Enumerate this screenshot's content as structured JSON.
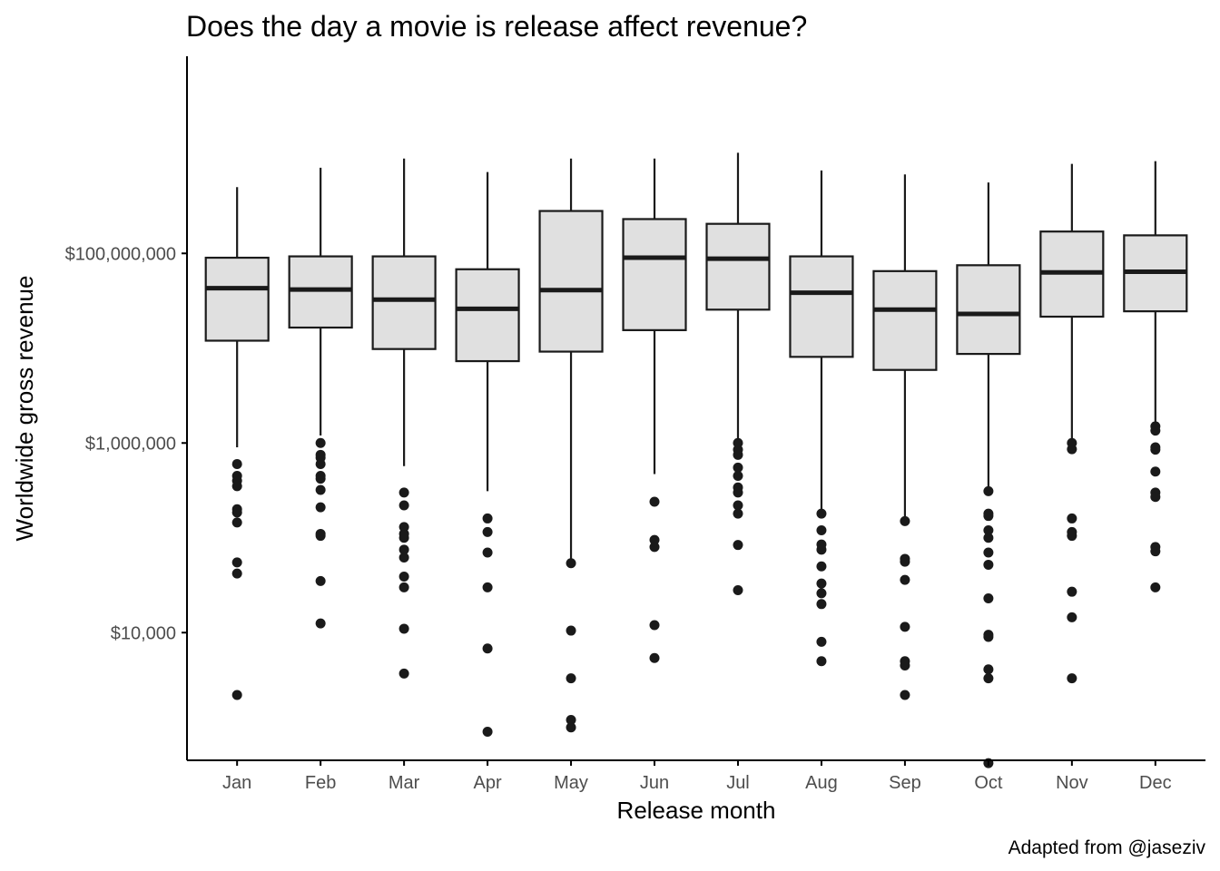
{
  "chart_data": {
    "type": "boxplot",
    "title": "Does the day a movie is release affect revenue?",
    "xlabel": "Release month",
    "ylabel": "Worldwide gross revenue",
    "caption": "Adapted from @jaseziv",
    "y_scale": "log10",
    "ylim": [
      450,
      12000000000
    ],
    "y_ticks": [
      {
        "value": 10000,
        "label": "$10,000"
      },
      {
        "value": 1000000,
        "label": "$1,000,000"
      },
      {
        "value": 100000000,
        "label": "$100,000,000"
      }
    ],
    "grid": false,
    "legend": "none",
    "categories": [
      "Jan",
      "Feb",
      "Mar",
      "Apr",
      "May",
      "Jun",
      "Jul",
      "Aug",
      "Sep",
      "Oct",
      "Nov",
      "Dec"
    ],
    "boxes": [
      {
        "month": "Jan",
        "min": 900000,
        "q1": 12000000,
        "median": 43000000,
        "q3": 90000000,
        "max": 500000000,
        "outliers": [
          600000,
          450000,
          400000,
          350000,
          200000,
          185000,
          145000,
          55000,
          42000,
          2200
        ]
      },
      {
        "month": "Feb",
        "min": 1200000,
        "q1": 16500000,
        "median": 41500000,
        "q3": 93000000,
        "max": 800000000,
        "outliers": [
          1000000,
          750000,
          700000,
          600000,
          450000,
          420000,
          320000,
          210000,
          110000,
          105000,
          35000,
          12500
        ]
      },
      {
        "month": "Mar",
        "min": 570000,
        "q1": 9800000,
        "median": 32500000,
        "q3": 93000000,
        "max": 1000000000,
        "outliers": [
          300000,
          220000,
          130000,
          100000,
          110000,
          75000,
          62000,
          39000,
          30000,
          11000,
          3700
        ]
      },
      {
        "month": "Apr",
        "min": 310000,
        "q1": 7300000,
        "median": 26000000,
        "q3": 68000000,
        "max": 720000000,
        "outliers": [
          160000,
          115000,
          70000,
          30000,
          6800,
          900
        ]
      },
      {
        "month": "May",
        "min": 58000,
        "q1": 9200000,
        "median": 41000000,
        "q3": 280000000,
        "max": 1000000000,
        "outliers": [
          54000,
          10500,
          3300,
          1200,
          1000
        ]
      },
      {
        "month": "Jun",
        "min": 470000,
        "q1": 15500000,
        "median": 90000000,
        "q3": 230000000,
        "max": 1000000000,
        "outliers": [
          240000,
          95000,
          80000,
          12000,
          5400
        ]
      },
      {
        "month": "Jul",
        "min": 1000000,
        "q1": 25500000,
        "median": 88000000,
        "q3": 205000000,
        "max": 1150000000,
        "outliers": [
          1000000,
          850000,
          750000,
          550000,
          450000,
          340000,
          300000,
          220000,
          180000,
          84000,
          28000
        ]
      },
      {
        "month": "Aug",
        "min": 190000,
        "q1": 8100000,
        "median": 38500000,
        "q3": 93000000,
        "max": 750000000,
        "outliers": [
          180000,
          120000,
          85000,
          75000,
          50000,
          33000,
          26000,
          20000,
          8000,
          5000
        ]
      },
      {
        "month": "Sep",
        "min": 150000,
        "q1": 5900000,
        "median": 25500000,
        "q3": 65000000,
        "max": 680000000,
        "outliers": [
          150000,
          60000,
          56000,
          36000,
          11500,
          5000,
          4500,
          2200
        ]
      },
      {
        "month": "Oct",
        "min": 320000,
        "q1": 8700000,
        "median": 23000000,
        "q3": 75000000,
        "max": 560000000,
        "outliers": [
          310000,
          180000,
          170000,
          120000,
          100000,
          70000,
          52000,
          23000,
          9500,
          9000,
          4100,
          3300,
          420
        ]
      },
      {
        "month": "Nov",
        "min": 1050000,
        "q1": 21500000,
        "median": 63000000,
        "q3": 170000000,
        "max": 880000000,
        "outliers": [
          1000000,
          860000,
          160000,
          115000,
          105000,
          27000,
          14500,
          3300
        ]
      },
      {
        "month": "Dec",
        "min": 1550000,
        "q1": 24500000,
        "median": 64000000,
        "q3": 155000000,
        "max": 940000000,
        "outliers": [
          1500000,
          1350000,
          900000,
          850000,
          500000,
          300000,
          270000,
          80000,
          72000,
          30000
        ]
      }
    ]
  },
  "colors": {
    "box_fill": "#e0e0e0",
    "box_stroke": "#1a1a1a",
    "median": "#1a1a1a",
    "whisker": "#1a1a1a",
    "outlier": "#1a1a1a",
    "axis": "#000000",
    "tick_label": "#4d4d4d",
    "background": "#ffffff"
  }
}
